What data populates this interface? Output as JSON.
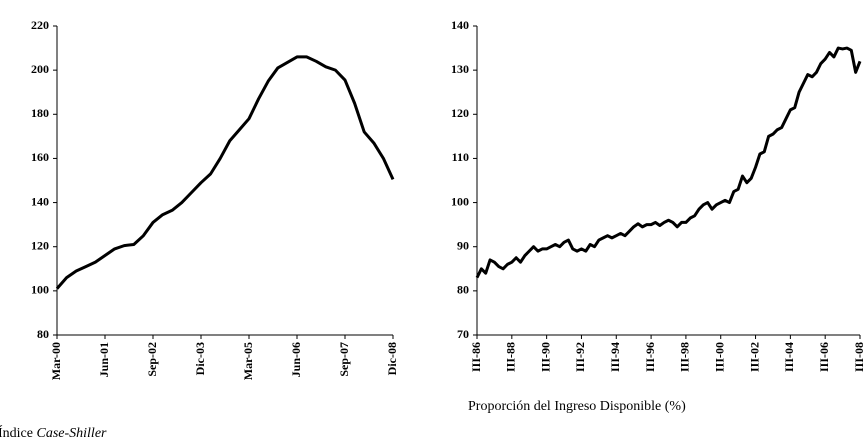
{
  "chart_data": [
    {
      "type": "line",
      "caption": "Índice",
      "caption_italic": "Case-Shiller",
      "categories": [
        "Mar-00",
        null,
        null,
        null,
        null,
        "Jun-01",
        null,
        null,
        null,
        null,
        "Sep-02",
        null,
        null,
        null,
        null,
        "Dic-03",
        null,
        null,
        null,
        null,
        "Mar-05",
        null,
        null,
        null,
        null,
        "Jun-06",
        null,
        null,
        null,
        null,
        "Sep-07",
        null,
        null,
        null,
        null,
        "Dic-08"
      ],
      "values": [
        101,
        106,
        109,
        111,
        113,
        116,
        119,
        120.5,
        121,
        125,
        131,
        134.5,
        136.5,
        140,
        144.5,
        149,
        153,
        160,
        168,
        173,
        178,
        187,
        195,
        201,
        203.5,
        206,
        206,
        204,
        201.5,
        200,
        195.5,
        185,
        172,
        167,
        160,
        150.5
      ],
      "color": "#000000",
      "ylim": [
        80,
        220
      ],
      "yticks": [
        80,
        100,
        120,
        140,
        160,
        180,
        200,
        220
      ]
    },
    {
      "type": "line",
      "caption": "Proporción del Ingreso Disponible (%)",
      "categories": [
        "III-86",
        null,
        null,
        null,
        null,
        null,
        null,
        null,
        "III-88",
        null,
        null,
        null,
        null,
        null,
        null,
        null,
        "III-90",
        null,
        null,
        null,
        null,
        null,
        null,
        null,
        "III-92",
        null,
        null,
        null,
        null,
        null,
        null,
        null,
        "III-94",
        null,
        null,
        null,
        null,
        null,
        null,
        null,
        "III-96",
        null,
        null,
        null,
        null,
        null,
        null,
        null,
        "III-98",
        null,
        null,
        null,
        null,
        null,
        null,
        null,
        "III-00",
        null,
        null,
        null,
        null,
        null,
        null,
        null,
        "III-02",
        null,
        null,
        null,
        null,
        null,
        null,
        null,
        "III-04",
        null,
        null,
        null,
        null,
        null,
        null,
        null,
        "III-06",
        null,
        null,
        null,
        null,
        null,
        null,
        null,
        "III-08"
      ],
      "values": [
        83,
        85,
        84,
        87,
        86.5,
        85.5,
        85,
        86,
        86.5,
        87.5,
        86.5,
        88,
        89,
        90,
        89,
        89.5,
        89.5,
        90,
        90.5,
        90,
        91,
        91.5,
        89.5,
        89,
        89.5,
        89,
        90.5,
        90,
        91.5,
        92,
        92.5,
        92,
        92.5,
        93,
        92.5,
        93.5,
        94.5,
        95.2,
        94.5,
        95,
        95,
        95.5,
        94.8,
        95.5,
        96,
        95.5,
        94.5,
        95.5,
        95.5,
        96.5,
        97,
        98.5,
        99.5,
        100,
        98.5,
        99.5,
        100,
        100.5,
        100,
        102.5,
        103,
        106,
        104.5,
        105.5,
        108,
        111,
        111.5,
        115,
        115.5,
        116.5,
        117,
        119,
        121,
        121.5,
        125,
        127,
        129,
        128.5,
        129.5,
        131.5,
        132.5,
        134,
        133,
        135,
        134.8,
        135,
        134.5,
        129.5,
        132
      ],
      "color": "#000000",
      "ylim": [
        70,
        140
      ],
      "yticks": [
        70,
        80,
        90,
        100,
        110,
        120,
        130,
        140
      ]
    }
  ]
}
